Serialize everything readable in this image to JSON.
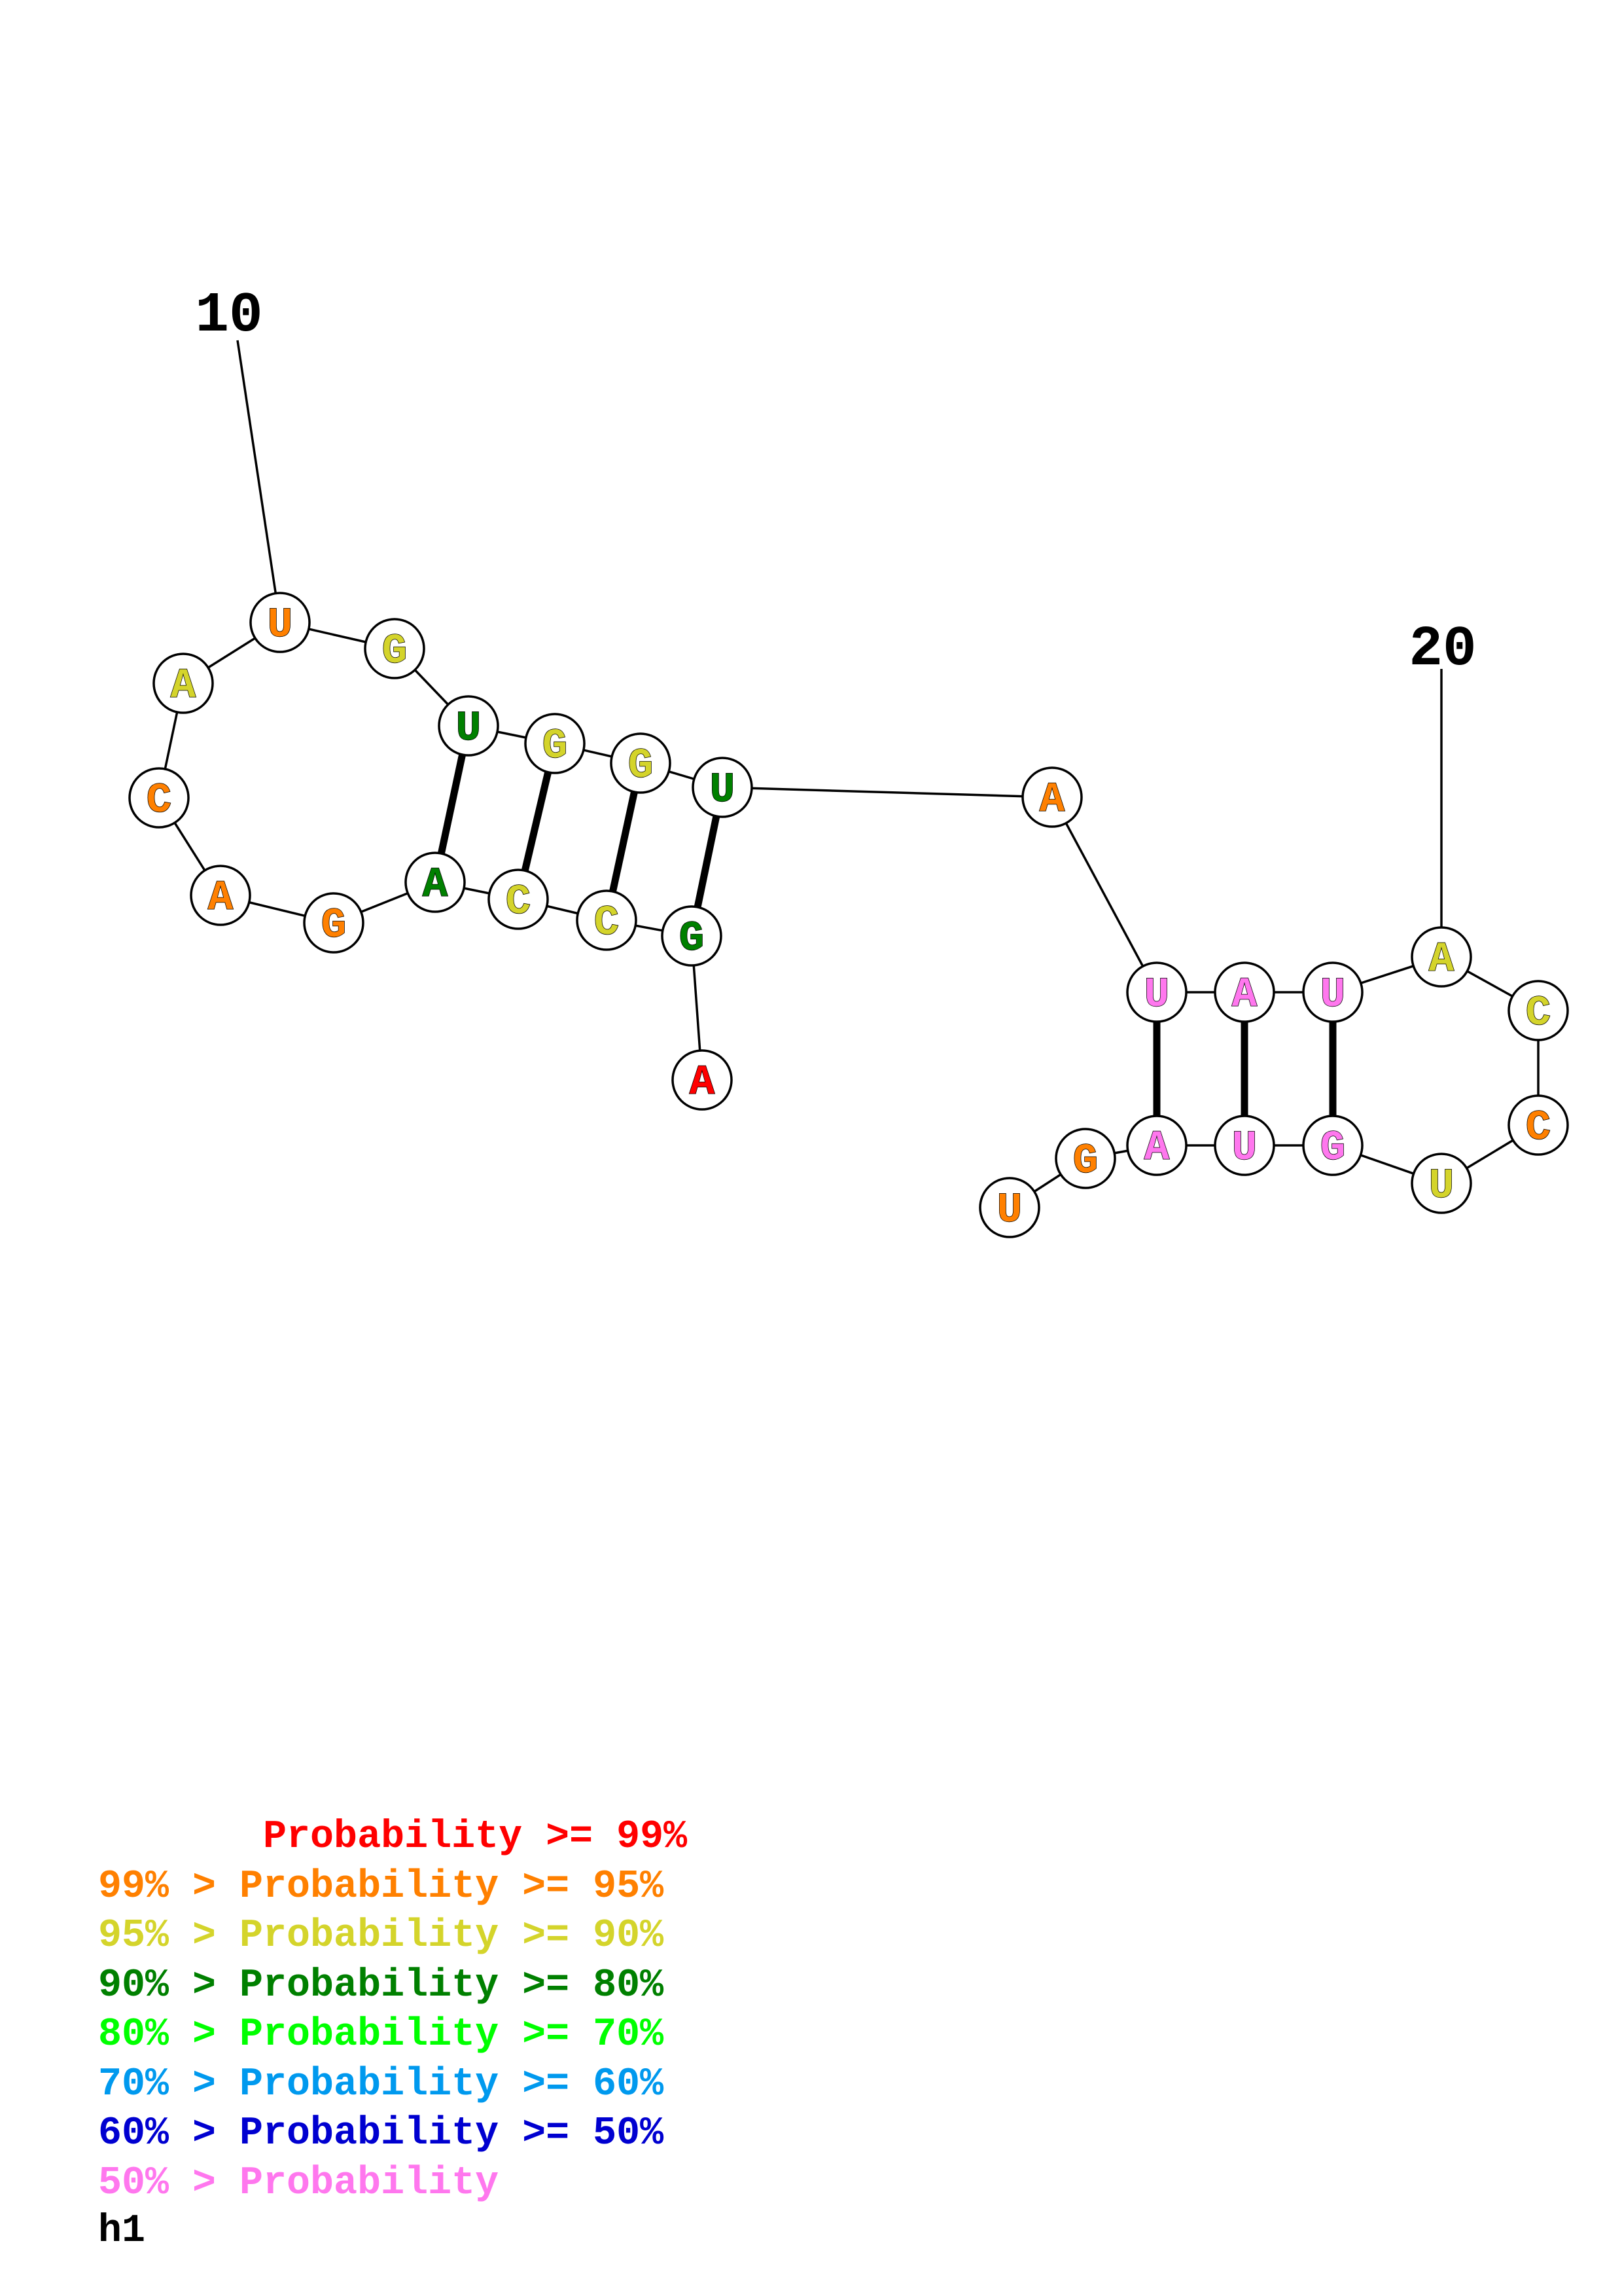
{
  "colors": {
    "p99": "#ff0000",
    "p95": "#ff8000",
    "p90": "#d4d42b",
    "p80": "#008000",
    "p70": "#00ff00",
    "p60": "#0099ee",
    "p50": "#0000d0",
    "p0": "#ff77ee"
  },
  "nucleotides": [
    {
      "base": "A",
      "prob": "p99"
    },
    {
      "base": "G",
      "prob": "p80"
    },
    {
      "base": "C",
      "prob": "p90"
    },
    {
      "base": "C",
      "prob": "p90"
    },
    {
      "base": "A",
      "prob": "p80"
    },
    {
      "base": "G",
      "prob": "p95"
    },
    {
      "base": "A",
      "prob": "p95"
    },
    {
      "base": "C",
      "prob": "p95"
    },
    {
      "base": "A",
      "prob": "p90"
    },
    {
      "base": "U",
      "prob": "p95"
    },
    {
      "base": "G",
      "prob": "p90"
    },
    {
      "base": "U",
      "prob": "p80"
    },
    {
      "base": "G",
      "prob": "p90"
    },
    {
      "base": "G",
      "prob": "p90"
    },
    {
      "base": "U",
      "prob": "p80"
    },
    {
      "base": "A",
      "prob": "p95"
    },
    {
      "base": "U",
      "prob": "p0"
    },
    {
      "base": "A",
      "prob": "p0"
    },
    {
      "base": "U",
      "prob": "p0"
    },
    {
      "base": "A",
      "prob": "p90"
    },
    {
      "base": "C",
      "prob": "p90"
    },
    {
      "base": "C",
      "prob": "p95"
    },
    {
      "base": "U",
      "prob": "p90"
    },
    {
      "base": "G",
      "prob": "p0"
    },
    {
      "base": "U",
      "prob": "p0"
    },
    {
      "base": "A",
      "prob": "p0"
    },
    {
      "base": "G",
      "prob": "p95"
    },
    {
      "base": "U",
      "prob": "p95"
    }
  ],
  "base_pairs": [
    [
      2,
      15
    ],
    [
      3,
      14
    ],
    [
      4,
      13
    ],
    [
      5,
      12
    ],
    [
      17,
      26
    ],
    [
      18,
      25
    ],
    [
      19,
      24
    ]
  ],
  "position_labels": [
    {
      "index": 10,
      "text": "10"
    },
    {
      "index": 20,
      "text": "20"
    }
  ],
  "legend": [
    {
      "text": "       Probability >= 99%",
      "color": "p99"
    },
    {
      "text": "99% > Probability >= 95%",
      "color": "p95"
    },
    {
      "text": "95% > Probability >= 90%",
      "color": "p90"
    },
    {
      "text": "90% > Probability >= 80%",
      "color": "p80"
    },
    {
      "text": "80% > Probability >= 70%",
      "color": "p70"
    },
    {
      "text": "70% > Probability >= 60%",
      "color": "p60"
    },
    {
      "text": "60% > Probability >= 50%",
      "color": "p50"
    },
    {
      "text": "50% > Probability",
      "color": "p0"
    }
  ],
  "title": "h1"
}
